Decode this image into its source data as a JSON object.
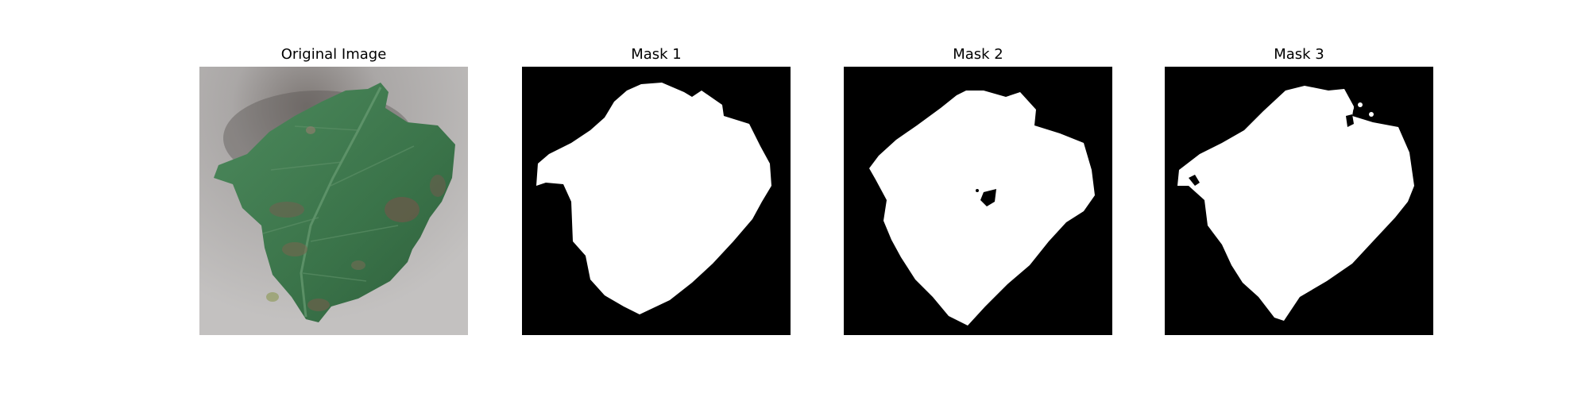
{
  "figure": {
    "panels": [
      {
        "title": "Original Image",
        "kind": "photo",
        "subject": "leaf"
      },
      {
        "title": "Mask 1",
        "kind": "mask"
      },
      {
        "title": "Mask 2",
        "kind": "mask"
      },
      {
        "title": "Mask 3",
        "kind": "mask"
      }
    ]
  },
  "colors": {
    "background": "#ffffff",
    "mask_background": "#000000",
    "mask_foreground": "#ffffff",
    "leaf_green": "#3f7a50",
    "leaf_dark": "#2b5636",
    "photo_background": "#b5b3b2"
  }
}
